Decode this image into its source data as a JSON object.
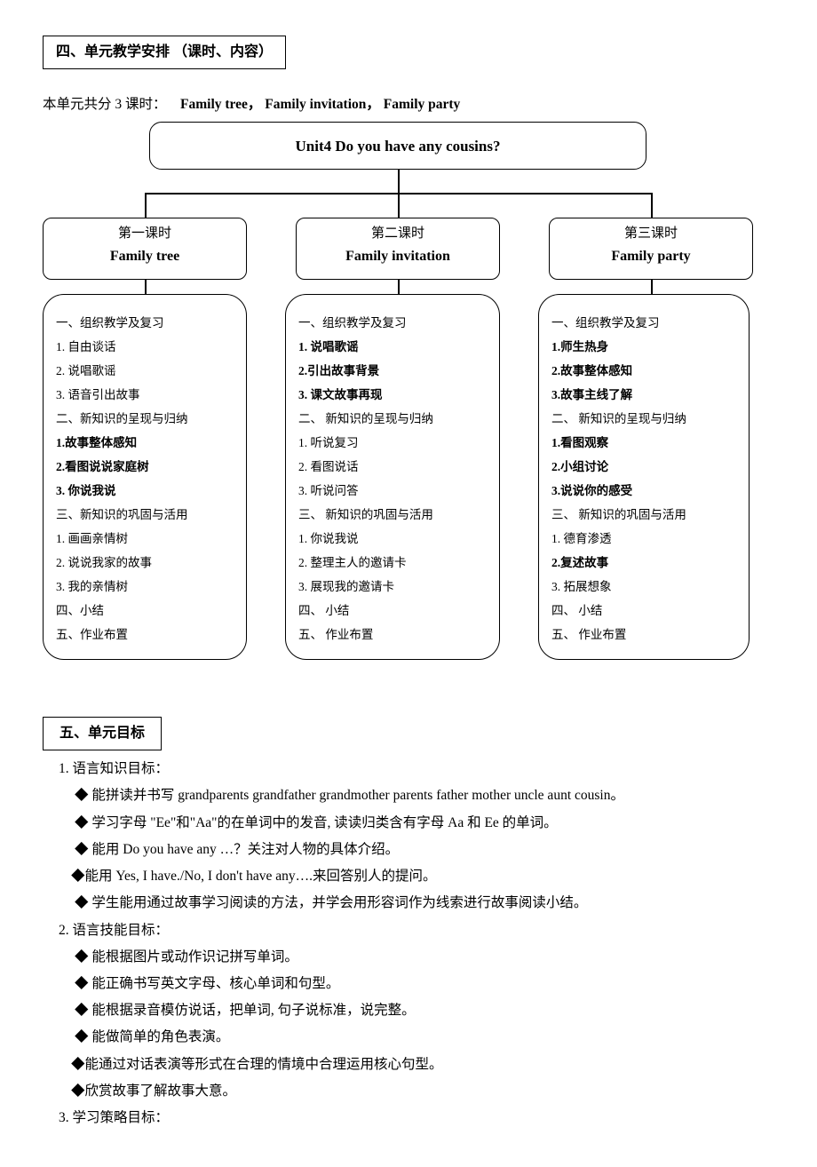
{
  "section4": {
    "title": "四、单元教学安排 （课时、内容）",
    "intro_prefix": "本单元共分 3 课时：",
    "intro_bold": "Family tree，  Family invitation，  Family party"
  },
  "unit_title": "Unit4    Do you have any cousins?",
  "lessons": [
    {
      "cn": "第一课时",
      "en": "Family tree",
      "items": [
        {
          "t": "一、组织教学及复习",
          "hdr": true
        },
        {
          "t": "1.   自由谈话"
        },
        {
          "t": "2.   说唱歌谣"
        },
        {
          "t": "3.   语音引出故事"
        },
        {
          "t": "二、新知识的呈现与归纳",
          "hdr": true
        },
        {
          "t": "1.故事整体感知",
          "bold": true
        },
        {
          "t": "2.看图说说家庭树",
          "bold": true
        },
        {
          "t": "3. 你说我说",
          "bold": true
        },
        {
          "t": "三、新知识的巩固与活用",
          "hdr": true
        },
        {
          "t": "1. 画画亲情树"
        },
        {
          "t": "2. 说说我家的故事"
        },
        {
          "t": "3. 我的亲情树"
        },
        {
          "t": "四、小结",
          "hdr": true
        },
        {
          "t": "五、作业布置",
          "hdr": true
        }
      ]
    },
    {
      "cn": "第二课时",
      "en": "Family invitation",
      "items": [
        {
          "t": "一、组织教学及复习",
          "hdr": true
        },
        {
          "t": "1. 说唱歌谣",
          "bold": true
        },
        {
          "t": "2.引出故事背景",
          "bold": true
        },
        {
          "t": "3. 课文故事再现",
          "bold": true
        },
        {
          "t": "二、 新知识的呈现与归纳",
          "hdr": true
        },
        {
          "t": "1. 听说复习"
        },
        {
          "t": "2. 看图说话"
        },
        {
          "t": "3. 听说问答"
        },
        {
          "t": "三、 新知识的巩固与活用",
          "hdr": true
        },
        {
          "t": "1. 你说我说"
        },
        {
          "t": "2. 整理主人的邀请卡"
        },
        {
          "t": "3. 展现我的邀请卡"
        },
        {
          "t": "四、 小结",
          "hdr": true
        },
        {
          "t": "五、 作业布置",
          "hdr": true
        }
      ]
    },
    {
      "cn": "第三课时",
      "en": "Family party",
      "items": [
        {
          "t": "一、组织教学及复习",
          "hdr": true
        },
        {
          "t": "1.师生热身",
          "bold": true
        },
        {
          "t": "2.故事整体感知",
          "bold": true
        },
        {
          "t": "3.故事主线了解",
          "bold": true
        },
        {
          "t": "二、 新知识的呈现与归纳",
          "hdr": true
        },
        {
          "t": "1.看图观察",
          "bold": true
        },
        {
          "t": "2.小组讨论",
          "bold": true
        },
        {
          "t": "3.说说你的感受",
          "bold": true
        },
        {
          "t": "三、 新知识的巩固与活用",
          "hdr": true
        },
        {
          "t": "1. 德育渗透"
        },
        {
          "t": "2.复述故事",
          "bold": true
        },
        {
          "t": "3. 拓展想象"
        },
        {
          "t": "四、 小结",
          "hdr": true
        },
        {
          "t": "五、 作业布置",
          "hdr": true
        }
      ]
    }
  ],
  "section5": {
    "title": "五、单元目标",
    "groups": [
      {
        "num": "1. 语言知识目标：",
        "bullets": [
          " 能拼读并书写 grandparents grandfather grandmother parents father mother uncle aunt cousin。",
          " 学习字母  \"Ee\"和\"Aa\"的在单词中的发音, 读读归类含有字母 Aa 和 Ee 的单词。",
          " 能用 Do you have any  …？关注对人物的具体介绍。",
          "能用 Yes, I have./No, I don't have any….来回答别人的提问。",
          " 学生能用通过故事学习阅读的方法，并学会用形容词作为线索进行故事阅读小结。"
        ],
        "tight": [
          false,
          false,
          false,
          true,
          false
        ]
      },
      {
        "num": "2. 语言技能目标：",
        "bullets": [
          " 能根据图片或动作识记拼写单词。",
          " 能正确书写英文字母、核心单词和句型。",
          " 能根据录音模仿说话，把单词, 句子说标准，说完整。",
          " 能做简单的角色表演。",
          "能通过对话表演等形式在合理的情境中合理运用核心句型。",
          "欣赏故事了解故事大意。"
        ],
        "tight": [
          false,
          false,
          false,
          false,
          true,
          true
        ]
      },
      {
        "num": "3. 学习策略目标：",
        "bullets": []
      }
    ]
  }
}
